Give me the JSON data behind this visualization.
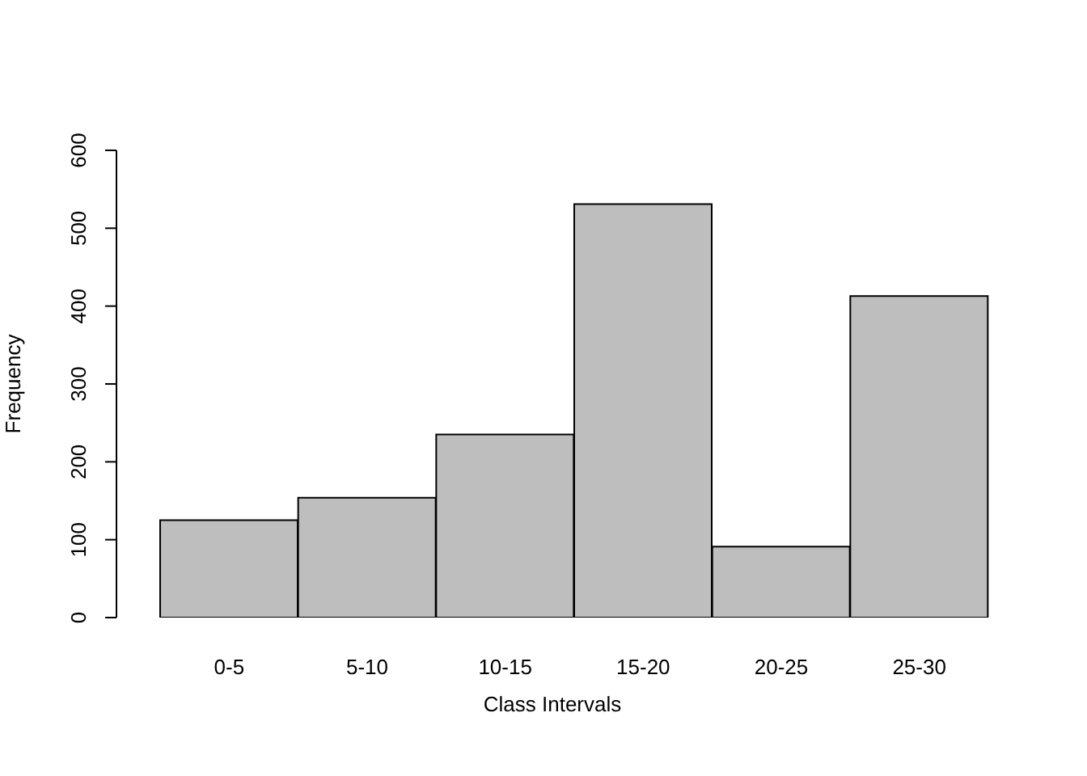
{
  "chart_data": {
    "type": "bar",
    "xlabel": "Class Intervals",
    "ylabel": "Frequency",
    "categories": [
      "0-5",
      "5-10",
      "10-15",
      "15-20",
      "20-25",
      "25-30"
    ],
    "values": [
      125,
      154,
      235,
      531,
      91,
      413
    ],
    "color": "#bebebe",
    "ylim": [
      0,
      600
    ],
    "yticks": [
      0,
      100,
      200,
      300,
      400,
      500,
      600
    ],
    "grid": false,
    "legend": false
  }
}
